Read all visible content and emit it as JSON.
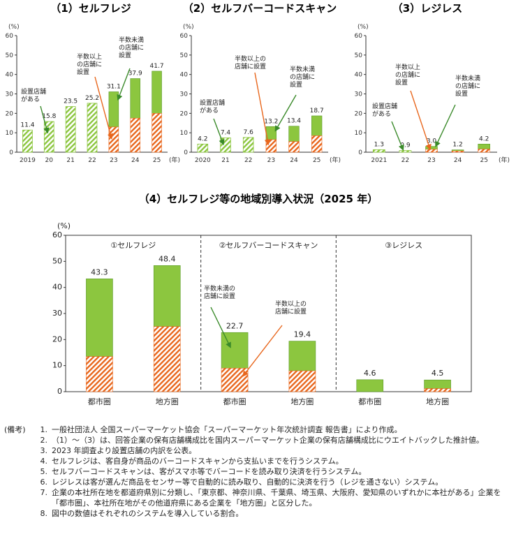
{
  "colors": {
    "green": "#8cc63f",
    "orange": "#e8661c",
    "dark_green": "#3a8a2a"
  },
  "chart_data": [
    {
      "type": "bar",
      "title": "（1）セルフレジ",
      "categories": [
        "2019",
        "20",
        "21",
        "22",
        "23",
        "24",
        "25"
      ],
      "unit_label": "(年)",
      "ylabel": "(%)",
      "ylim": [
        0,
        60
      ],
      "yticks": [
        "0",
        "10",
        "20",
        "30",
        "40",
        "50",
        "60"
      ],
      "total": [
        11.4,
        15.8,
        23.5,
        25.2,
        31.1,
        37.9,
        41.7
      ],
      "total_labels": [
        "11.4",
        "15.8",
        "23.5",
        "25.2",
        "31.1",
        "37.9",
        "41.7"
      ],
      "majority": [
        null,
        null,
        null,
        null,
        13,
        17.5,
        20
      ],
      "annotations": {
        "installed": [
          "設置店舗",
          "がある"
        ],
        "majority": [
          "半数以上",
          "の店舗に",
          "設置"
        ],
        "minority": [
          "半数未満",
          "の店舗に",
          "設置"
        ]
      }
    },
    {
      "type": "bar",
      "title": "（2）セルフバーコードスキャン",
      "categories": [
        "2020",
        "21",
        "22",
        "23",
        "24",
        "25"
      ],
      "unit_label": "(年)",
      "ylabel": "(%)",
      "ylim": [
        0,
        60
      ],
      "yticks": [
        "0",
        "10",
        "20",
        "30",
        "40",
        "50",
        "60"
      ],
      "total": [
        4.2,
        7.4,
        7.6,
        13.2,
        13.4,
        18.7
      ],
      "total_labels": [
        "4.2",
        "7.4",
        "7.6",
        "13.2",
        "13.4",
        "18.7"
      ],
      "majority": [
        null,
        null,
        null,
        6.5,
        5.5,
        8.5
      ],
      "annotations": {
        "installed": [
          "設置店舗",
          "がある"
        ],
        "majority": [
          "半数以上の",
          "店舗に設置"
        ],
        "minority": [
          "半数未満",
          "の店舗に",
          "設置"
        ]
      }
    },
    {
      "type": "bar",
      "title": "（3）レジレス",
      "categories": [
        "2021",
        "22",
        "23",
        "24",
        "25"
      ],
      "unit_label": "(年)",
      "ylabel": "(%)",
      "ylim": [
        0,
        60
      ],
      "yticks": [
        "0",
        "10",
        "20",
        "30",
        "40",
        "50",
        "60"
      ],
      "total": [
        1.3,
        0.9,
        3.0,
        1.2,
        4.2
      ],
      "total_labels": [
        "1.3",
        "0.9",
        "3.0",
        "1.2",
        "4.2"
      ],
      "majority": [
        null,
        null,
        1.5,
        0.6,
        1.6
      ],
      "annotations": {
        "installed": [
          "設置店舗",
          "がある"
        ],
        "majority": [
          "半数以上",
          "の店舗に",
          "設置"
        ],
        "minority": [
          "半数未満",
          "の店舗に",
          "設置"
        ]
      }
    },
    {
      "type": "bar",
      "title": "（4）セルフレジ等の地域別導入状況（2025 年）",
      "ylabel": "(%)",
      "ylim": [
        0,
        60
      ],
      "yticks": [
        "0",
        "10",
        "20",
        "30",
        "40",
        "50",
        "60"
      ],
      "groups": [
        "①セルフレジ",
        "②セルフバーコードスキャン",
        "③レジレス"
      ],
      "categories": [
        "都市圏",
        "地方圏",
        "都市圏",
        "地方圏",
        "都市圏",
        "地方圏"
      ],
      "total": [
        43.3,
        48.4,
        22.7,
        19.4,
        4.6,
        4.5
      ],
      "total_labels": [
        "43.3",
        "48.4",
        "22.7",
        "19.4",
        "4.6",
        "4.5"
      ],
      "majority": [
        13.5,
        25,
        9,
        8,
        0,
        1.2
      ],
      "annotations": {
        "minority": [
          "半数未満の",
          "店舗に設置"
        ],
        "majority": [
          "半数以上の",
          "店舗に設置"
        ]
      }
    }
  ],
  "notes": {
    "heading": "(備考)",
    "items": [
      {
        "num": "1.",
        "text": "一般社団法人 全国スーパーマーケット協会「スーパーマーケット年次統計調査 報告書」により作成。"
      },
      {
        "num": "2.",
        "text": "（1）～（3）は、回答企業の保有店舗構成比を国内スーパーマーケット企業の保有店舗構成比にウエイトバックした推計値。"
      },
      {
        "num": "3.",
        "text": "2023 年調査より設置店舗の内訳を公表。"
      },
      {
        "num": "4.",
        "text": "セルフレジは、客自身が商品のバーコードスキャンから支払いまでを行うシステム。"
      },
      {
        "num": "5.",
        "text": "セルフバーコードスキャンは、客がスマホ等でバーコードを読み取り決済を行うシステム。"
      },
      {
        "num": "6.",
        "text": "レジレスは客が選んだ商品をセンサー等で自動的に読み取り、自動的に決済を行う（レジを通さない）システム。"
      },
      {
        "num": "7.",
        "text": "企業の本社所在地を都道府県別に分類し、「東京都、神奈川県、千葉県、埼玉県、大阪府、愛知県のいずれかに本社がある」企業を「都市圏」、本社所在地がその他道府県にある企業を「地方圏」と区分した。"
      },
      {
        "num": "8.",
        "text": "図中の数値はそれぞれのシステムを導入している割合。"
      }
    ]
  }
}
